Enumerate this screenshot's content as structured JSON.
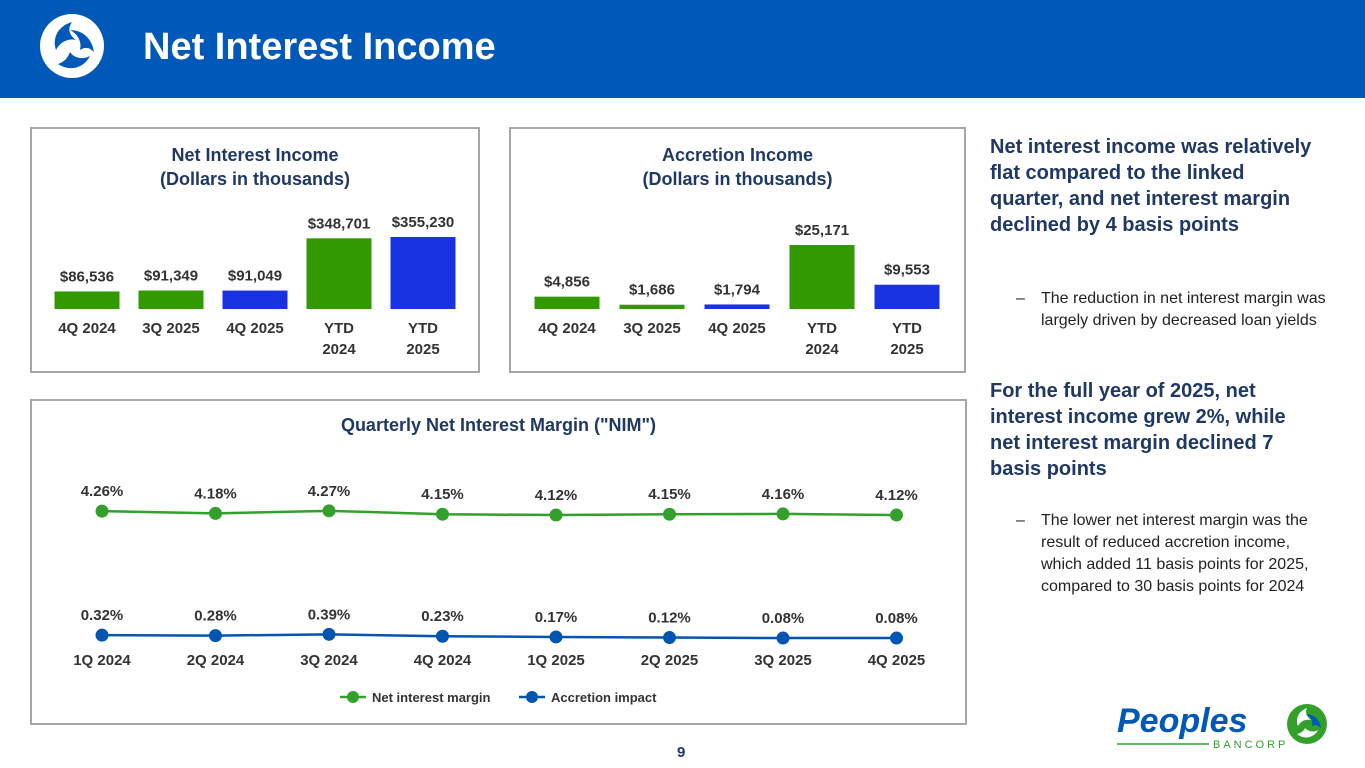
{
  "header": {
    "title": "Net Interest Income"
  },
  "nii_chart": {
    "title_line1": "Net Interest Income",
    "title_line2": "(Dollars in thousands)",
    "chart_data": {
      "type": "bar",
      "categories": [
        "4Q 2024",
        "3Q 2025",
        "4Q 2025",
        "YTD 2024",
        "YTD 2025"
      ],
      "values": [
        86536,
        91349,
        91049,
        348701,
        355230
      ],
      "labels": [
        "$86,536",
        "$91,349",
        "$91,049",
        "$348,701",
        "$355,230"
      ],
      "colors": [
        "#339900",
        "#339900",
        "#1a33e0",
        "#339900",
        "#1a33e0"
      ],
      "title": "Net Interest Income (Dollars in thousands)"
    }
  },
  "accretion_chart": {
    "title_line1": "Accretion Income",
    "title_line2": "(Dollars in thousands)",
    "chart_data": {
      "type": "bar",
      "categories": [
        "4Q 2024",
        "3Q 2025",
        "4Q 2025",
        "YTD 2024",
        "YTD 2025"
      ],
      "values": [
        4856,
        1686,
        1794,
        25171,
        9553
      ],
      "labels": [
        "$4,856",
        "$1,686",
        "$1,794",
        "$25,171",
        "$9,553"
      ],
      "colors": [
        "#339900",
        "#339900",
        "#1a33e0",
        "#339900",
        "#1a33e0"
      ],
      "title": "Accretion Income (Dollars in thousands)"
    }
  },
  "nim_chart": {
    "title": "Quarterly Net Interest Margin (\"NIM\")",
    "chart_data": {
      "type": "line",
      "categories": [
        "1Q 2024",
        "2Q 2024",
        "3Q 2024",
        "4Q 2024",
        "1Q 2025",
        "2Q 2025",
        "3Q 2025",
        "4Q 2025"
      ],
      "series": [
        {
          "name": "Net interest margin",
          "color": "#33a02c",
          "values": [
            4.26,
            4.18,
            4.27,
            4.15,
            4.12,
            4.15,
            4.16,
            4.12
          ],
          "labels": [
            "4.26%",
            "4.18%",
            "4.27%",
            "4.15%",
            "4.12%",
            "4.15%",
            "4.16%",
            "4.12%"
          ]
        },
        {
          "name": "Accretion impact",
          "color": "#0055b0",
          "values": [
            0.32,
            0.28,
            0.39,
            0.23,
            0.17,
            0.12,
            0.08,
            0.08
          ],
          "labels": [
            "0.32%",
            "0.28%",
            "0.39%",
            "0.23%",
            "0.17%",
            "0.12%",
            "0.08%",
            "0.08%"
          ]
        }
      ],
      "legend": "bottom"
    }
  },
  "commentary": {
    "point1": "Net interest income was relatively flat compared to the linked quarter, and net interest margin declined by 4 basis points",
    "sub1": "The reduction in net interest margin was largely driven by decreased loan yields",
    "point2": "For the full year of 2025, net interest income grew 2%, while net interest margin declined 7 basis points",
    "sub2": "The lower net interest margin was the result of reduced accretion income, which added 11 basis points for 2025, compared to 30 basis points for 2024",
    "dash": "–"
  },
  "footer": {
    "page_number": "9",
    "brand_name": "Peoples",
    "brand_sub": "BANCORP"
  }
}
